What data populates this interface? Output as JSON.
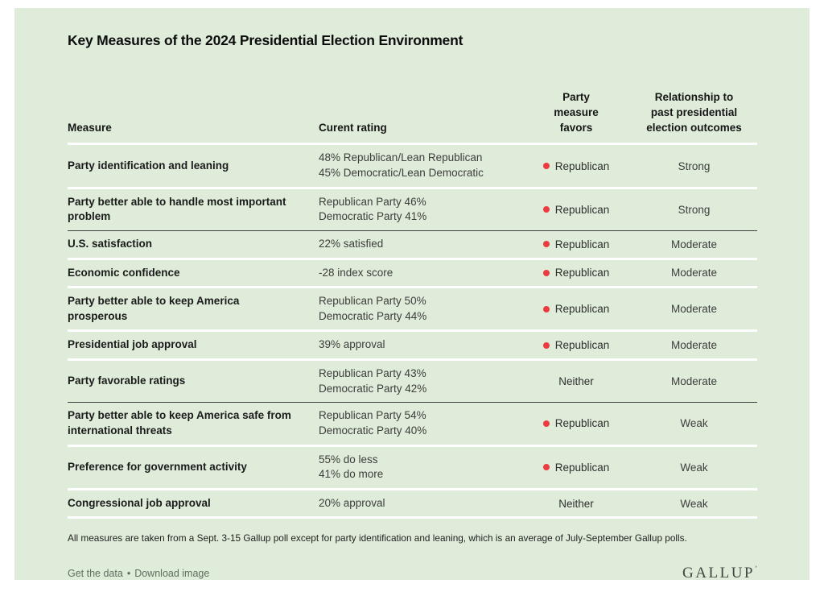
{
  "chart_data": {
    "type": "table",
    "title": "Key Measures of the 2024 Presidential Election Environment",
    "columns": [
      "Measure",
      "Curent rating",
      "Party measure favors",
      "Relationship to past presidential election outcomes"
    ],
    "rows": [
      {
        "measure": "Party identification and leaning",
        "rating": [
          "48% Republican/Lean Republican",
          "45% Democratic/Lean Democratic"
        ],
        "favors": {
          "dot": true,
          "label": "Republican"
        },
        "relationship": "Strong"
      },
      {
        "measure": "Party better able to handle most important problem",
        "rating": [
          "Republican Party 46%",
          "Democratic Party 41%"
        ],
        "favors": {
          "dot": true,
          "label": "Republican"
        },
        "relationship": "Strong"
      },
      {
        "measure": "U.S. satisfaction",
        "rating": [
          "22% satisfied"
        ],
        "favors": {
          "dot": true,
          "label": "Republican"
        },
        "relationship": "Moderate"
      },
      {
        "measure": "Economic confidence",
        "rating": [
          "-28 index score"
        ],
        "favors": {
          "dot": true,
          "label": "Republican"
        },
        "relationship": "Moderate"
      },
      {
        "measure": "Party better able to keep America prosperous",
        "rating": [
          "Republican Party 50%",
          "Democratic Party 44%"
        ],
        "favors": {
          "dot": true,
          "label": "Republican"
        },
        "relationship": "Moderate"
      },
      {
        "measure": "Presidential job approval",
        "rating": [
          "39% approval"
        ],
        "favors": {
          "dot": true,
          "label": "Republican"
        },
        "relationship": "Moderate"
      },
      {
        "measure": "Party favorable ratings",
        "rating": [
          "Republican Party 43%",
          "Democratic Party 42%"
        ],
        "favors": {
          "dot": false,
          "label": "Neither"
        },
        "relationship": "Moderate"
      },
      {
        "measure": "Party better able to keep America safe from international threats",
        "rating": [
          "Republican Party 54%",
          "Democratic Party 40%"
        ],
        "favors": {
          "dot": true,
          "label": "Republican"
        },
        "relationship": "Weak"
      },
      {
        "measure": "Preference for government activity",
        "rating": [
          "55% do less",
          "41% do more"
        ],
        "favors": {
          "dot": true,
          "label": "Republican"
        },
        "relationship": "Weak"
      },
      {
        "measure": "Congressional job approval",
        "rating": [
          "20% approval"
        ],
        "favors": {
          "dot": false,
          "label": "Neither"
        },
        "relationship": "Weak"
      }
    ],
    "footnote": "All measures are taken from a Sept. 3-15 Gallup poll except for party identification and leaning, which is an average of July-September Gallup polls."
  },
  "table_headers": {
    "measure": "Measure",
    "rating": "Curent rating",
    "favors": [
      "Party",
      "measure",
      "favors"
    ],
    "relationship": [
      "Relationship to",
      "past presidential",
      "election outcomes"
    ]
  },
  "colors": {
    "card_background": "#deecd9",
    "favor_dot_red": "#ee3a41",
    "group_divider": "#3e3e3e",
    "row_divider": "#ffffff"
  },
  "footer": {
    "get_data": "Get the data",
    "bullet": "•",
    "download": "Download image",
    "logo": "GALLUP",
    "logo_mark": "ʼ"
  }
}
